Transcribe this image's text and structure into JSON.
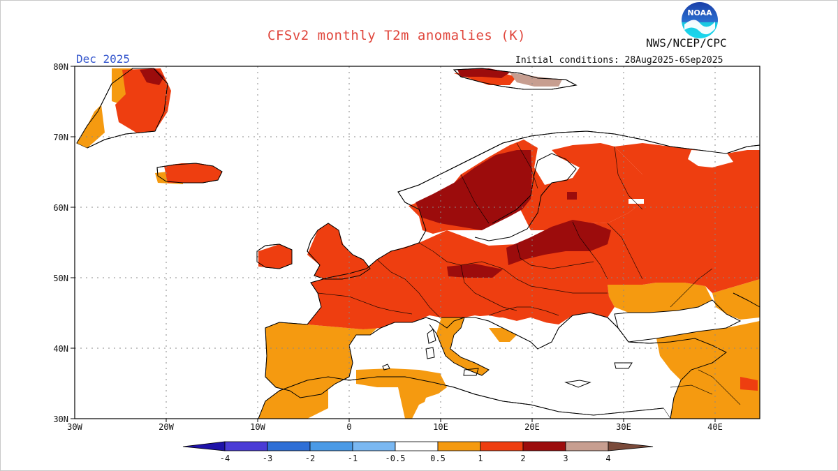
{
  "header": {
    "title": "CFSv2 monthly T2m anomalies (K)",
    "agency": "NWS/NCEP/CPC",
    "month": "Dec 2025",
    "initial_conditions": "Initial conditions: 28Aug2025-6Sep2025",
    "logo_text": "NOAA"
  },
  "axes": {
    "lat_labels": [
      "80N",
      "70N",
      "60N",
      "50N",
      "40N",
      "30N"
    ],
    "lon_labels": [
      "30W",
      "20W",
      "10W",
      "0",
      "10E",
      "20E",
      "30E",
      "40E"
    ]
  },
  "legend": {
    "labels": [
      "-4",
      "-3",
      "-2",
      "-1",
      "-0.5",
      "0.5",
      "1",
      "2",
      "3",
      "4"
    ],
    "colors": [
      "#1e12a8",
      "#4a3bd6",
      "#2f6fd6",
      "#4a9ae6",
      "#7ab8f2",
      "#ffffff",
      "#f59a10",
      "#ee3e10",
      "#9c0c0c",
      "#c79e90",
      "#7a4a3a"
    ]
  },
  "anomaly_colors": {
    "0.5-1": "#f59a10",
    "1-2": "#ee3e10",
    "2-3": "#9c0c0c",
    "3-4": "#c79e90"
  }
}
